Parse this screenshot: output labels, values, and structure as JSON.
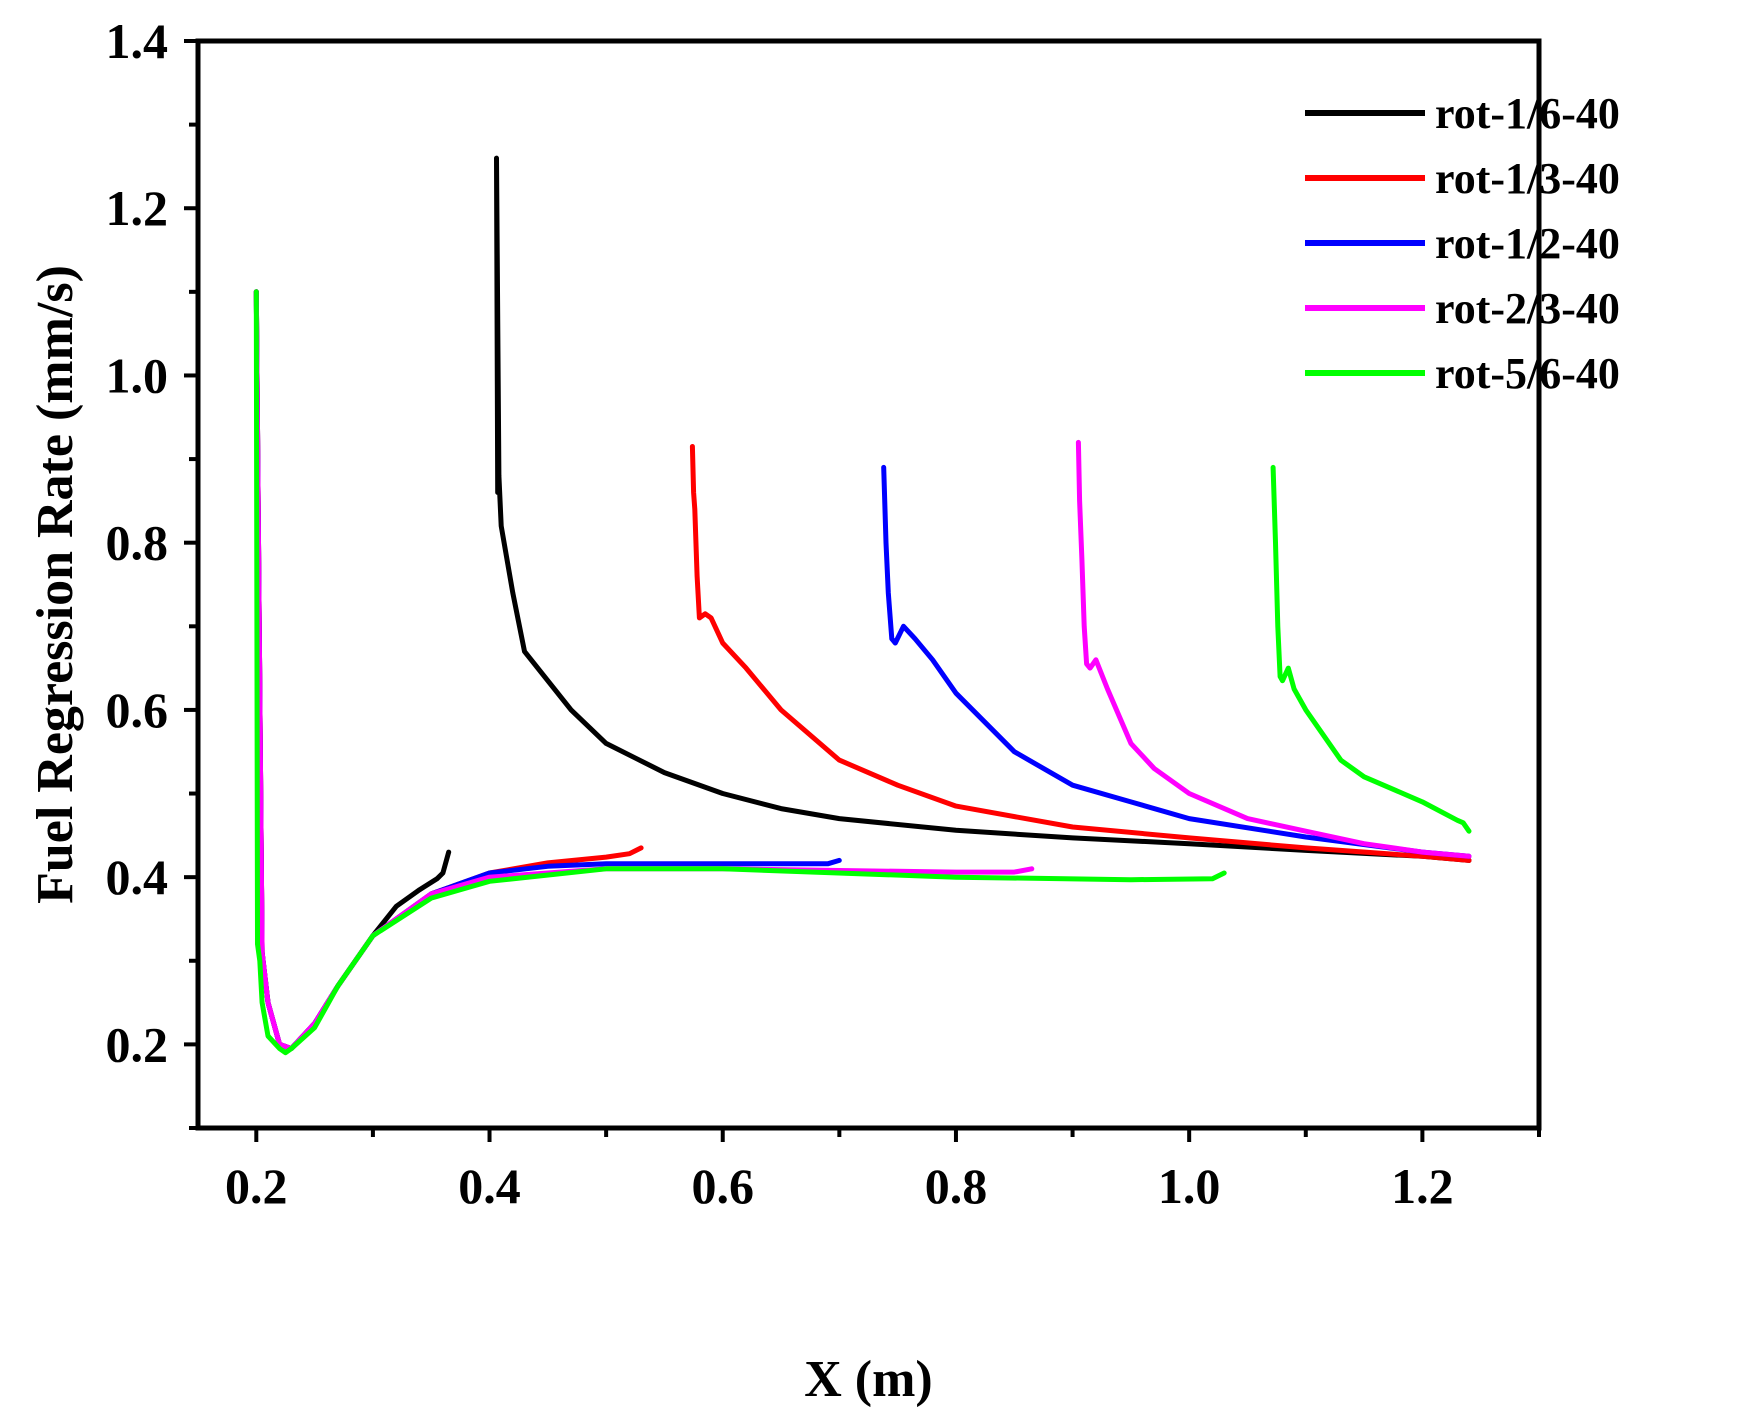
{
  "chart_data": {
    "type": "line",
    "title": "",
    "xlabel": "X (m)",
    "ylabel": "Fuel Regression Rate (mm/s)",
    "xlim": [
      0.15,
      1.3
    ],
    "ylim": [
      0.1,
      1.4
    ],
    "xticks": [
      0.2,
      0.4,
      0.6,
      0.8,
      1.0,
      1.2
    ],
    "xtick_labels": [
      "0.2",
      "0.4",
      "0.6",
      "0.8",
      "1.0",
      "1.2"
    ],
    "yticks": [
      0.2,
      0.4,
      0.6,
      0.8,
      1.0,
      1.2,
      1.4
    ],
    "ytick_labels": [
      "0.2",
      "0.4",
      "0.6",
      "0.8",
      "1.0",
      "1.2",
      "1.4"
    ],
    "legend_position": "top-right",
    "grid": false,
    "series": [
      {
        "name": "rot-1/6-40",
        "color": "#000000",
        "x": [
          1.24,
          1.2,
          1.1,
          1.0,
          0.9,
          0.8,
          0.7,
          0.65,
          0.6,
          0.55,
          0.5,
          0.47,
          0.43,
          0.42,
          0.41,
          0.408,
          0.406,
          0.407,
          0.2,
          0.205,
          0.21,
          0.22,
          0.23,
          0.25,
          0.27,
          0.3,
          0.32,
          0.34,
          0.355,
          0.36,
          0.365
        ],
        "y": [
          0.42,
          0.425,
          0.432,
          0.44,
          0.447,
          0.456,
          0.47,
          0.482,
          0.5,
          0.525,
          0.56,
          0.6,
          0.67,
          0.74,
          0.82,
          0.88,
          1.26,
          0.86,
          1.1,
          0.31,
          0.25,
          0.2,
          0.195,
          0.225,
          0.27,
          0.33,
          0.365,
          0.385,
          0.398,
          0.405,
          0.43
        ]
      },
      {
        "name": "rot-1/3-40",
        "color": "#ff0000",
        "x": [
          1.24,
          1.2,
          1.1,
          1.0,
          0.9,
          0.8,
          0.75,
          0.7,
          0.65,
          0.62,
          0.6,
          0.59,
          0.585,
          0.58,
          0.578,
          0.576,
          0.575,
          0.574,
          0.2,
          0.205,
          0.21,
          0.22,
          0.23,
          0.25,
          0.27,
          0.3,
          0.35,
          0.4,
          0.45,
          0.5,
          0.52,
          0.53
        ],
        "y": [
          0.42,
          0.425,
          0.435,
          0.447,
          0.46,
          0.485,
          0.51,
          0.54,
          0.6,
          0.65,
          0.68,
          0.71,
          0.715,
          0.71,
          0.76,
          0.84,
          0.86,
          0.915,
          1.1,
          0.31,
          0.25,
          0.2,
          0.195,
          0.225,
          0.27,
          0.33,
          0.38,
          0.405,
          0.417,
          0.424,
          0.428,
          0.435
        ]
      },
      {
        "name": "rot-1/2-40",
        "color": "#0000ff",
        "x": [
          1.24,
          1.2,
          1.1,
          1.0,
          0.95,
          0.9,
          0.85,
          0.8,
          0.78,
          0.765,
          0.755,
          0.748,
          0.745,
          0.742,
          0.74,
          0.738,
          0.2,
          0.205,
          0.21,
          0.22,
          0.23,
          0.25,
          0.27,
          0.3,
          0.35,
          0.4,
          0.45,
          0.5,
          0.6,
          0.69,
          0.7
        ],
        "y": [
          0.425,
          0.43,
          0.448,
          0.47,
          0.49,
          0.51,
          0.55,
          0.62,
          0.66,
          0.685,
          0.7,
          0.68,
          0.685,
          0.74,
          0.8,
          0.89,
          1.1,
          0.31,
          0.25,
          0.2,
          0.195,
          0.225,
          0.27,
          0.33,
          0.38,
          0.405,
          0.413,
          0.416,
          0.416,
          0.416,
          0.42
        ]
      },
      {
        "name": "rot-2/3-40",
        "color": "#ff00ff",
        "x": [
          1.24,
          1.2,
          1.15,
          1.1,
          1.05,
          1.0,
          0.97,
          0.95,
          0.93,
          0.92,
          0.915,
          0.912,
          0.91,
          0.908,
          0.906,
          0.905,
          0.2,
          0.205,
          0.21,
          0.22,
          0.23,
          0.25,
          0.27,
          0.3,
          0.35,
          0.4,
          0.5,
          0.6,
          0.7,
          0.8,
          0.85,
          0.865
        ],
        "y": [
          0.425,
          0.43,
          0.44,
          0.455,
          0.47,
          0.5,
          0.53,
          0.56,
          0.625,
          0.66,
          0.65,
          0.655,
          0.7,
          0.78,
          0.85,
          0.92,
          1.1,
          0.31,
          0.25,
          0.2,
          0.195,
          0.225,
          0.27,
          0.33,
          0.38,
          0.4,
          0.41,
          0.41,
          0.408,
          0.406,
          0.406,
          0.41
        ]
      },
      {
        "name": "rot-5/6-40",
        "color": "#00ff00",
        "x": [
          1.24,
          1.235,
          1.23,
          1.2,
          1.15,
          1.13,
          1.11,
          1.1,
          1.09,
          1.085,
          1.08,
          1.078,
          1.076,
          1.074,
          1.072,
          0.2,
          0.201,
          0.203,
          0.205,
          0.21,
          0.22,
          0.225,
          0.23,
          0.25,
          0.27,
          0.3,
          0.35,
          0.4,
          0.5,
          0.6,
          0.8,
          0.95,
          1.02,
          1.03
        ],
        "y": [
          0.455,
          0.465,
          0.468,
          0.49,
          0.52,
          0.54,
          0.58,
          0.6,
          0.625,
          0.65,
          0.635,
          0.64,
          0.7,
          0.8,
          0.89,
          1.1,
          0.32,
          0.3,
          0.25,
          0.21,
          0.195,
          0.19,
          0.195,
          0.22,
          0.27,
          0.33,
          0.375,
          0.395,
          0.41,
          0.41,
          0.4,
          0.397,
          0.398,
          0.405
        ]
      }
    ]
  }
}
